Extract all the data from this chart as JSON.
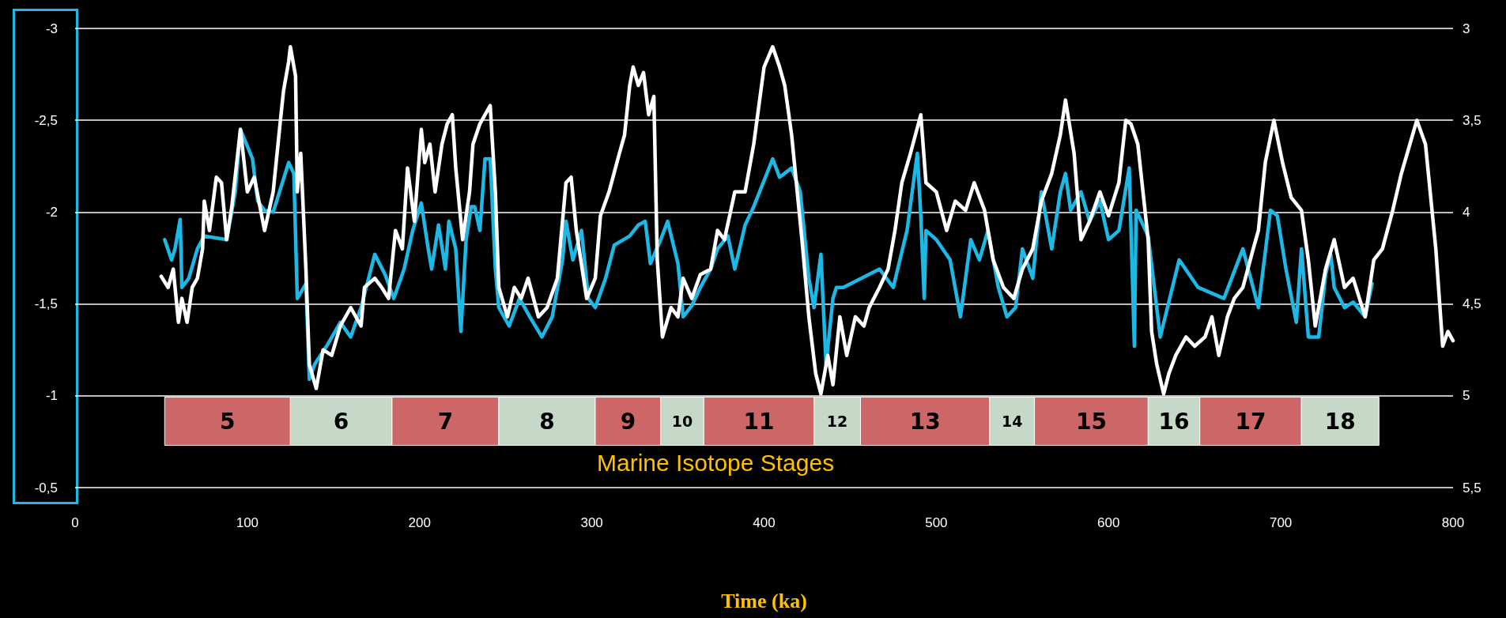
{
  "chart_data": {
    "type": "line",
    "xlabel": "Time (ka)",
    "annotations": [
      "Marine Isotope Stages"
    ],
    "xlim": [
      0,
      800
    ],
    "xticks": [
      0,
      100,
      200,
      300,
      400,
      500,
      600,
      700,
      800
    ],
    "ylim": [
      -0.5,
      -3
    ],
    "yticks": [
      {
        "value": -3,
        "label": "-3"
      },
      {
        "value": -2.5,
        "label": "-2,5"
      },
      {
        "value": -2,
        "label": "-2"
      },
      {
        "value": -1.5,
        "label": "-1,5"
      },
      {
        "value": -1,
        "label": "-1"
      },
      {
        "value": -0.5,
        "label": "-0,5"
      }
    ],
    "y2lim": [
      5.5,
      3
    ],
    "y2ticks": [
      {
        "value": 3,
        "label": "3"
      },
      {
        "value": 3.5,
        "label": "3,5"
      },
      {
        "value": 4,
        "label": "4"
      },
      {
        "value": 4.5,
        "label": "4,5"
      },
      {
        "value": 5,
        "label": "5"
      },
      {
        "value": 5.5,
        "label": "5,5"
      }
    ],
    "grid": "y",
    "marker": "none",
    "line_style": "solid",
    "series": [
      {
        "color": "#ffffff",
        "axis": "y2",
        "x": [
          50,
          54,
          57,
          60,
          62,
          65,
          68,
          71,
          74,
          75,
          78,
          82,
          85,
          88,
          91,
          96,
          100,
          104,
          110,
          115,
          119,
          121,
          124,
          125,
          128,
          129,
          131,
          134,
          136,
          140,
          144,
          149,
          154,
          160,
          166,
          168,
          174,
          178,
          182,
          186,
          190,
          193,
          197,
          201,
          203,
          206,
          209,
          213,
          216,
          219,
          221,
          225,
          229,
          231,
          235,
          238,
          241,
          244,
          246,
          251,
          255,
          259,
          263,
          269,
          274,
          280,
          285,
          288,
          291,
          297,
          302,
          305,
          310,
          316,
          319,
          322,
          324,
          327,
          330,
          333,
          336,
          338,
          341,
          346,
          350,
          353,
          358,
          363,
          369,
          373,
          377,
          383,
          389,
          394,
          400,
          405,
          409,
          412,
          416,
          422,
          426,
          430,
          433,
          437,
          440,
          444,
          448,
          453,
          458,
          461,
          467,
          472,
          476,
          480,
          485,
          491,
          494,
          500,
          506,
          511,
          517,
          522,
          528,
          533,
          539,
          545,
          550,
          556,
          561,
          567,
          572,
          575,
          580,
          584,
          589,
          595,
          600,
          606,
          610,
          613,
          617,
          623,
          625,
          628,
          632,
          635,
          639,
          645,
          650,
          656,
          660,
          664,
          669,
          673,
          678,
          684,
          687,
          691,
          696,
          701,
          706,
          712,
          716,
          720,
          726,
          731,
          737,
          742,
          749,
          754,
          759,
          765,
          770,
          779,
          784,
          790,
          794,
          797,
          800
        ],
        "values": [
          4.35,
          4.41,
          4.31,
          4.6,
          4.47,
          4.6,
          4.41,
          4.36,
          4.2,
          3.94,
          4.1,
          3.81,
          3.84,
          4.15,
          3.97,
          3.55,
          3.89,
          3.81,
          4.1,
          3.89,
          3.52,
          3.34,
          3.18,
          3.1,
          3.26,
          3.89,
          3.68,
          4.31,
          4.83,
          4.96,
          4.75,
          4.78,
          4.62,
          4.52,
          4.62,
          4.41,
          4.36,
          4.41,
          4.47,
          4.1,
          4.2,
          3.76,
          4.05,
          3.55,
          3.73,
          3.63,
          3.89,
          3.63,
          3.52,
          3.47,
          3.76,
          4.15,
          3.89,
          3.63,
          3.52,
          3.47,
          3.42,
          3.89,
          4.41,
          4.57,
          4.41,
          4.47,
          4.36,
          4.57,
          4.52,
          4.36,
          3.84,
          3.81,
          4.1,
          4.47,
          4.36,
          4.02,
          3.89,
          3.68,
          3.58,
          3.31,
          3.21,
          3.31,
          3.24,
          3.47,
          3.37,
          4.26,
          4.68,
          4.52,
          4.57,
          4.36,
          4.47,
          4.34,
          4.31,
          4.1,
          4.15,
          3.89,
          3.89,
          3.63,
          3.21,
          3.1,
          3.21,
          3.31,
          3.58,
          4.15,
          4.57,
          4.88,
          4.99,
          4.78,
          4.94,
          4.57,
          4.78,
          4.57,
          4.62,
          4.52,
          4.41,
          4.31,
          4.1,
          3.84,
          3.68,
          3.47,
          3.84,
          3.89,
          4.1,
          3.94,
          3.99,
          3.84,
          3.99,
          4.26,
          4.41,
          4.47,
          4.31,
          4.2,
          3.94,
          3.79,
          3.58,
          3.39,
          3.68,
          4.15,
          4.05,
          3.89,
          4.02,
          3.84,
          3.5,
          3.52,
          3.63,
          4.15,
          4.65,
          4.83,
          4.99,
          4.88,
          4.78,
          4.68,
          4.73,
          4.68,
          4.57,
          4.78,
          4.57,
          4.47,
          4.41,
          4.2,
          4.1,
          3.73,
          3.5,
          3.73,
          3.92,
          3.99,
          4.26,
          4.62,
          4.31,
          4.15,
          4.41,
          4.36,
          4.57,
          4.26,
          4.2,
          3.99,
          3.79,
          3.5,
          3.63,
          4.2,
          4.73,
          4.65,
          4.7
        ]
      },
      {
        "color": "#1cb8e6",
        "x": [
          52,
          56,
          58,
          61,
          62,
          66,
          71,
          75,
          88,
          93,
          96,
          103,
          106,
          110,
          115,
          124,
          127,
          129,
          134,
          136,
          139,
          146,
          154,
          160,
          166,
          174,
          180,
          185,
          191,
          196,
          201,
          205,
          207,
          211,
          215,
          217,
          221,
          224,
          227,
          230,
          232,
          235,
          238,
          241,
          244,
          246,
          252,
          258,
          264,
          271,
          277,
          283,
          285,
          289,
          294,
          298,
          302,
          308,
          313,
          322,
          327,
          331,
          334,
          340,
          344,
          350,
          353,
          358,
          363,
          369,
          373,
          379,
          383,
          389,
          394,
          405,
          409,
          416,
          421,
          426,
          429,
          433,
          436,
          440,
          442,
          446,
          467,
          475,
          483,
          489,
          491,
          493,
          494,
          500,
          508,
          514,
          520,
          525,
          530,
          536,
          541,
          546,
          550,
          556,
          561,
          567,
          572,
          575,
          578,
          584,
          589,
          595,
          600,
          606,
          612,
          615,
          616,
          623,
          630,
          641,
          652,
          667,
          678,
          687,
          694,
          698,
          703,
          709,
          712,
          716,
          722,
          726,
          729,
          731,
          737,
          742,
          749,
          753
        ],
        "values": [
          -1.85,
          -1.74,
          -1.8,
          -1.96,
          -1.59,
          -1.64,
          -1.8,
          -1.87,
          -1.85,
          -2.11,
          -2.45,
          -2.29,
          -2.06,
          -2.01,
          -2.0,
          -2.27,
          -2.21,
          -1.53,
          -1.61,
          -1.09,
          -1.17,
          -1.27,
          -1.4,
          -1.32,
          -1.48,
          -1.77,
          -1.66,
          -1.53,
          -1.69,
          -1.9,
          -2.05,
          -1.8,
          -1.69,
          -1.93,
          -1.69,
          -1.95,
          -1.8,
          -1.35,
          -1.85,
          -2.03,
          -2.03,
          -1.9,
          -2.29,
          -2.29,
          -1.69,
          -1.48,
          -1.38,
          -1.53,
          -1.43,
          -1.32,
          -1.43,
          -1.74,
          -1.95,
          -1.74,
          -1.9,
          -1.53,
          -1.48,
          -1.64,
          -1.82,
          -1.87,
          -1.93,
          -1.95,
          -1.72,
          -1.85,
          -1.95,
          -1.72,
          -1.43,
          -1.49,
          -1.59,
          -1.69,
          -1.8,
          -1.87,
          -1.69,
          -1.93,
          -2.03,
          -2.29,
          -2.19,
          -2.24,
          -2.11,
          -1.64,
          -1.48,
          -1.77,
          -1.17,
          -1.53,
          -1.59,
          -1.59,
          -1.69,
          -1.59,
          -1.9,
          -2.32,
          -1.98,
          -1.53,
          -1.9,
          -1.85,
          -1.74,
          -1.43,
          -1.85,
          -1.74,
          -1.9,
          -1.59,
          -1.43,
          -1.48,
          -1.8,
          -1.64,
          -2.11,
          -1.8,
          -2.11,
          -2.21,
          -2.01,
          -2.11,
          -1.95,
          -2.06,
          -1.85,
          -1.9,
          -2.24,
          -1.27,
          -2.01,
          -1.87,
          -1.32,
          -1.74,
          -1.59,
          -1.53,
          -1.8,
          -1.48,
          -2.01,
          -1.98,
          -1.69,
          -1.4,
          -1.8,
          -1.32,
          -1.32,
          -1.66,
          -1.77,
          -1.59,
          -1.48,
          -1.51,
          -1.43,
          -1.61
        ]
      }
    ],
    "bands": [
      {
        "axis": "x",
        "from": 52,
        "to": 125,
        "label": "5",
        "color": "#cd6666"
      },
      {
        "axis": "x",
        "from": 125,
        "to": 184,
        "label": "6",
        "color": "#c6d9c8"
      },
      {
        "axis": "x",
        "from": 184,
        "to": 246,
        "label": "7",
        "color": "#cd6666"
      },
      {
        "axis": "x",
        "from": 246,
        "to": 302,
        "label": "8",
        "color": "#c6d9c8"
      },
      {
        "axis": "x",
        "from": 302,
        "to": 340,
        "label": "9",
        "color": "#cd6666"
      },
      {
        "axis": "x",
        "from": 340,
        "to": 365,
        "label": "10",
        "color": "#c6d9c8"
      },
      {
        "axis": "x",
        "from": 365,
        "to": 429,
        "label": "11",
        "color": "#cd6666"
      },
      {
        "axis": "x",
        "from": 429,
        "to": 456,
        "label": "12",
        "color": "#c6d9c8"
      },
      {
        "axis": "x",
        "from": 456,
        "to": 531,
        "label": "13",
        "color": "#cd6666"
      },
      {
        "axis": "x",
        "from": 531,
        "to": 557,
        "label": "14",
        "color": "#c6d9c8"
      },
      {
        "axis": "x",
        "from": 557,
        "to": 623,
        "label": "15",
        "color": "#cd6666"
      },
      {
        "axis": "x",
        "from": 623,
        "to": 653,
        "label": "16",
        "color": "#c6d9c8"
      },
      {
        "axis": "x",
        "from": 653,
        "to": 712,
        "label": "17",
        "color": "#cd6666"
      },
      {
        "axis": "x",
        "from": 712,
        "to": 757,
        "label": "18",
        "color": "#c6d9c8"
      }
    ]
  }
}
